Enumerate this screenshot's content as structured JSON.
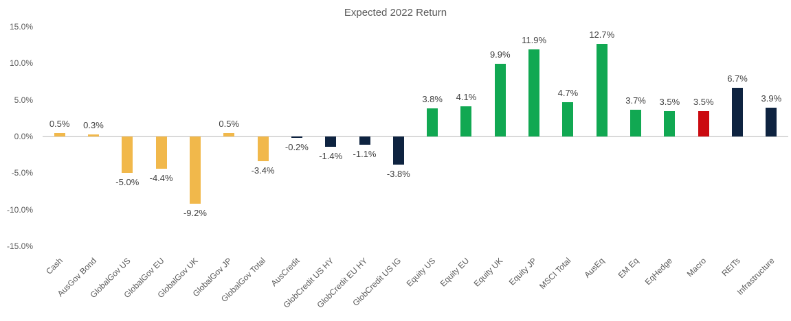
{
  "chart_data": {
    "type": "bar",
    "title": "Expected 2022 Return",
    "categories": [
      "Cash",
      "AusGov Bond",
      "GlobalGov US",
      "GlobalGov EU",
      "GlobalGov UK",
      "GlobalGov JP",
      "GlobalGov Total",
      "AusCredit",
      "GlobCredit US HY",
      "GlobCredit EU HY",
      "GlobCredit US IG",
      "Equity US",
      "Equity EU",
      "Equity UK",
      "Equity JP",
      "MSCI Total",
      "AusEq",
      "EM Eq",
      "EqHedge",
      "Macro",
      "REITs",
      "Infrastructure"
    ],
    "values": [
      0.5,
      0.3,
      -5.0,
      -4.4,
      -9.2,
      0.5,
      -3.4,
      -0.2,
      -1.4,
      -1.1,
      -3.8,
      3.8,
      4.1,
      9.9,
      11.9,
      4.7,
      12.7,
      3.7,
      3.5,
      3.5,
      6.7,
      3.9
    ],
    "data_labels": [
      "0.5%",
      "0.3%",
      "-5.0%",
      "-4.4%",
      "-9.2%",
      "0.5%",
      "-3.4%",
      "-0.2%",
      "-1.4%",
      "-1.1%",
      "-3.8%",
      "3.8%",
      "4.1%",
      "9.9%",
      "11.9%",
      "4.7%",
      "12.7%",
      "3.7%",
      "3.5%",
      "3.5%",
      "6.7%",
      "3.9%"
    ],
    "bar_colors": [
      "#F1B84B",
      "#F1B84B",
      "#F1B84B",
      "#F1B84B",
      "#F1B84B",
      "#F1B84B",
      "#F1B84B",
      "#0E2340",
      "#0E2340",
      "#0E2340",
      "#0E2340",
      "#11A852",
      "#11A852",
      "#11A852",
      "#11A852",
      "#11A852",
      "#11A852",
      "#11A852",
      "#11A852",
      "#CB0A10",
      "#0E2340",
      "#0E2340"
    ],
    "palette": {
      "cash_bonds_gold": "#F1B84B",
      "credit_alternatives_navy": "#0E2340",
      "equity_green": "#11A852",
      "macro_red": "#CB0A10"
    },
    "xlabel": "",
    "ylabel": "",
    "ylim": [
      -15,
      15
    ],
    "y_ticks": [
      15,
      10,
      5,
      0,
      -5,
      -10,
      -15
    ],
    "y_tick_labels": [
      "15.0%",
      "10.0%",
      "5.0%",
      "0.0%",
      "-5.0%",
      "-10.0%",
      "-15.0%"
    ],
    "y_axis_format": "percent",
    "gridlines": "none",
    "zero_line_color": "#D9D9D9",
    "legend": "none",
    "x_label_rotation_deg": 45
  }
}
